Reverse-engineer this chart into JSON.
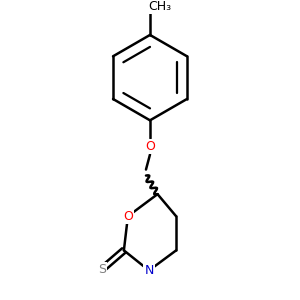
{
  "background": "#ffffff",
  "bond_color": "#000000",
  "bond_width": 1.8,
  "atom_O_color": "#ff0000",
  "atom_N_color": "#0000cc",
  "atom_S_color": "#808080",
  "atom_C_color": "#000000",
  "font_size_label": 9,
  "font_size_ch3": 9,
  "xlim": [
    -1.8,
    1.8
  ],
  "ylim": [
    -0.9,
    4.8
  ]
}
